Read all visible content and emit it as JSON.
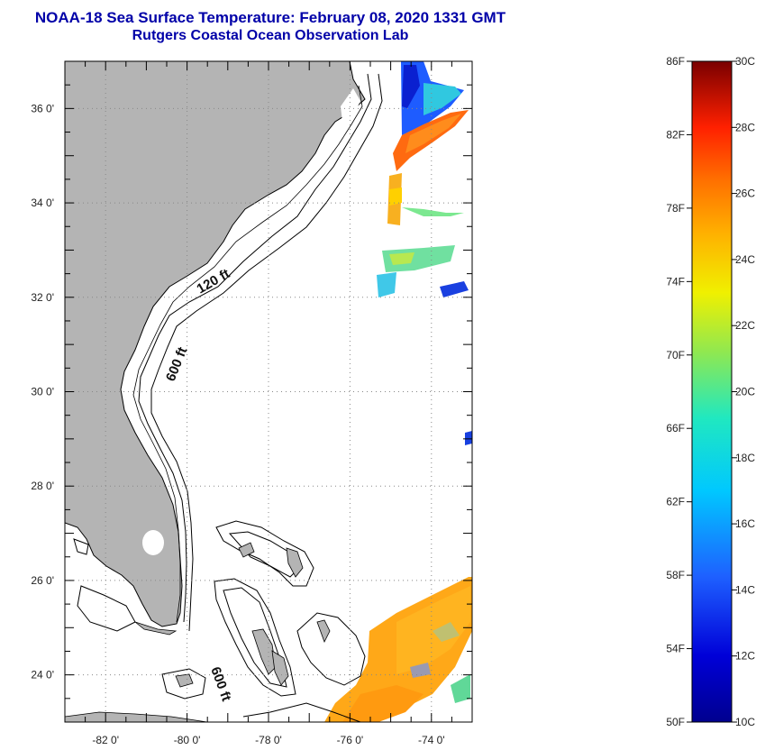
{
  "title": {
    "line1": "NOAA-18 Sea Surface Temperature:  February 08, 2020 1331 GMT",
    "line2": "Rutgers Coastal Ocean Observation Lab"
  },
  "map": {
    "lon_range": [
      -83,
      -73
    ],
    "lat_range": [
      23,
      37
    ],
    "lon_ticks": [
      {
        "value": -82,
        "label": "-82 0'"
      },
      {
        "value": -80,
        "label": "-80 0'"
      },
      {
        "value": -78,
        "label": "-78 0'"
      },
      {
        "value": -76,
        "label": "-76 0'"
      },
      {
        "value": -74,
        "label": "-74 0'"
      }
    ],
    "lat_ticks": [
      {
        "value": 36,
        "label": "36 0'"
      },
      {
        "value": 34,
        "label": "34 0'"
      },
      {
        "value": 32,
        "label": "32 0'"
      },
      {
        "value": 30,
        "label": "30 0'"
      },
      {
        "value": 28,
        "label": "28 0'"
      },
      {
        "value": 26,
        "label": "26 0'"
      },
      {
        "value": 24,
        "label": "24 0'"
      }
    ],
    "contour_labels": {
      "shallow": "120 ft",
      "deep": "600 ft",
      "bahamas": "600 ft"
    },
    "land_color": "#b4b4b4"
  },
  "colorbar": {
    "fahrenheit_labels": [
      "86F",
      "82F",
      "78F",
      "74F",
      "70F",
      "66F",
      "62F",
      "58F",
      "54F",
      "50F"
    ],
    "celsius_labels": [
      "30C",
      "28C",
      "26C",
      "24C",
      "22C",
      "20C",
      "18C",
      "16C",
      "14C",
      "12C",
      "10C"
    ]
  }
}
